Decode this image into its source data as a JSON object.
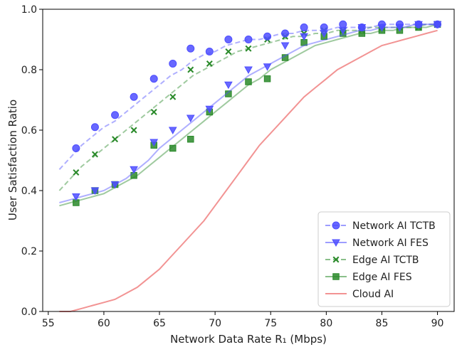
{
  "chart_data": {
    "type": "line",
    "xlabel": "Network Data Rate R₁ (Mbps)",
    "ylabel": "User Satisfaction Ratio",
    "xlim": [
      54.5,
      91.5
    ],
    "ylim": [
      0.0,
      1.0
    ],
    "xticks": [
      55,
      60,
      65,
      70,
      75,
      80,
      85,
      90
    ],
    "yticks": [
      0.0,
      0.2,
      0.4,
      0.6,
      0.8,
      1.0
    ],
    "xtick_labels": [
      "55",
      "60",
      "65",
      "70",
      "75",
      "80",
      "85",
      "90"
    ],
    "ytick_labels": [
      "0.0",
      "0.2",
      "0.4",
      "0.6",
      "0.8",
      "1.0"
    ],
    "grid": false,
    "legend_position": "bottom-right",
    "series": [
      {
        "name": "Network AI TCTB",
        "color": "#4d4dff",
        "line_style": "dashed",
        "marker": "circle",
        "x": [
          56,
          57,
          58,
          59,
          60,
          61,
          62,
          63,
          64,
          65,
          66,
          67,
          68,
          69,
          70,
          71,
          72,
          73,
          74,
          75,
          76,
          77,
          78,
          79,
          80,
          81,
          82,
          83,
          84,
          85,
          86,
          87,
          88,
          89,
          90
        ],
        "values": [
          0.47,
          0.51,
          0.55,
          0.58,
          0.61,
          0.63,
          0.66,
          0.69,
          0.72,
          0.75,
          0.78,
          0.8,
          0.83,
          0.85,
          0.86,
          0.88,
          0.89,
          0.9,
          0.9,
          0.91,
          0.92,
          0.92,
          0.93,
          0.93,
          0.93,
          0.94,
          0.94,
          0.94,
          0.94,
          0.95,
          0.95,
          0.95,
          0.95,
          0.95,
          0.95
        ],
        "markers_x": [
          57.5,
          59.2,
          61.0,
          62.7,
          64.5,
          66.2,
          67.8,
          69.5,
          71.2,
          73.0,
          74.7,
          76.3,
          78.0,
          79.8,
          81.5,
          83.2,
          85.0,
          86.6,
          88.3,
          90.0
        ],
        "markers_y": [
          0.54,
          0.61,
          0.65,
          0.71,
          0.77,
          0.82,
          0.87,
          0.86,
          0.9,
          0.9,
          0.91,
          0.92,
          0.94,
          0.94,
          0.95,
          0.94,
          0.95,
          0.95,
          0.95,
          0.95
        ]
      },
      {
        "name": "Network AI FES",
        "color": "#4d4dff",
        "line_style": "solid",
        "marker": "triangle-down",
        "x": [
          56,
          57,
          58,
          59,
          60,
          61,
          62,
          63,
          64,
          65,
          66,
          67,
          68,
          69,
          70,
          71,
          72,
          73,
          74,
          75,
          76,
          77,
          78,
          79,
          80,
          81,
          82,
          83,
          84,
          85,
          86,
          87,
          88,
          89,
          90
        ],
        "values": [
          0.36,
          0.37,
          0.38,
          0.39,
          0.4,
          0.42,
          0.44,
          0.47,
          0.5,
          0.54,
          0.57,
          0.6,
          0.63,
          0.66,
          0.69,
          0.72,
          0.75,
          0.78,
          0.8,
          0.82,
          0.84,
          0.86,
          0.88,
          0.89,
          0.9,
          0.91,
          0.92,
          0.93,
          0.93,
          0.94,
          0.94,
          0.94,
          0.95,
          0.95,
          0.95
        ],
        "markers_x": [
          57.5,
          59.2,
          61.0,
          62.7,
          64.5,
          66.2,
          67.8,
          69.5,
          71.2,
          73.0,
          74.7,
          76.3,
          78.0,
          79.8,
          81.5,
          83.2,
          85.0,
          86.6,
          88.3,
          90.0
        ],
        "markers_y": [
          0.38,
          0.4,
          0.42,
          0.47,
          0.56,
          0.6,
          0.64,
          0.67,
          0.75,
          0.8,
          0.81,
          0.88,
          0.91,
          0.92,
          0.93,
          0.94,
          0.94,
          0.94,
          0.95,
          0.95
        ]
      },
      {
        "name": "Edge AI TCTB",
        "color": "#2a8a2a",
        "line_style": "dashed",
        "marker": "x",
        "x": [
          56,
          57,
          58,
          59,
          60,
          61,
          62,
          63,
          64,
          65,
          66,
          67,
          68,
          69,
          70,
          71,
          72,
          73,
          74,
          75,
          76,
          77,
          78,
          79,
          80,
          81,
          82,
          83,
          84,
          85,
          86,
          87,
          88,
          89,
          90
        ],
        "values": [
          0.4,
          0.44,
          0.48,
          0.51,
          0.54,
          0.57,
          0.6,
          0.63,
          0.66,
          0.69,
          0.72,
          0.75,
          0.78,
          0.8,
          0.82,
          0.84,
          0.86,
          0.87,
          0.88,
          0.89,
          0.9,
          0.91,
          0.91,
          0.92,
          0.92,
          0.93,
          0.93,
          0.93,
          0.94,
          0.94,
          0.94,
          0.94,
          0.94,
          0.95,
          0.95
        ],
        "markers_x": [
          57.5,
          59.2,
          61.0,
          62.7,
          64.5,
          66.2,
          67.8,
          69.5,
          71.2,
          73.0,
          74.7,
          76.3,
          78.0,
          79.8,
          81.5,
          83.2,
          85.0,
          86.6,
          88.3,
          90.0
        ],
        "markers_y": [
          0.46,
          0.52,
          0.57,
          0.6,
          0.66,
          0.71,
          0.8,
          0.82,
          0.86,
          0.87,
          0.9,
          0.91,
          0.92,
          0.93,
          0.93,
          0.93,
          0.94,
          0.94,
          0.94,
          0.95
        ]
      },
      {
        "name": "Edge AI FES",
        "color": "#2a8a2a",
        "line_style": "solid",
        "marker": "square",
        "x": [
          56,
          57,
          58,
          59,
          60,
          61,
          62,
          63,
          64,
          65,
          66,
          67,
          68,
          69,
          70,
          71,
          72,
          73,
          74,
          75,
          76,
          77,
          78,
          79,
          80,
          81,
          82,
          83,
          84,
          85,
          86,
          87,
          88,
          89,
          90
        ],
        "values": [
          0.35,
          0.36,
          0.37,
          0.38,
          0.39,
          0.41,
          0.43,
          0.45,
          0.48,
          0.51,
          0.54,
          0.57,
          0.6,
          0.63,
          0.66,
          0.69,
          0.72,
          0.75,
          0.77,
          0.8,
          0.82,
          0.84,
          0.86,
          0.88,
          0.89,
          0.9,
          0.91,
          0.92,
          0.92,
          0.93,
          0.93,
          0.94,
          0.94,
          0.94,
          0.95
        ],
        "markers_x": [
          57.5,
          59.2,
          61.0,
          62.7,
          64.5,
          66.2,
          67.8,
          69.5,
          71.2,
          73.0,
          74.7,
          76.3,
          78.0,
          79.8,
          81.5,
          83.2,
          85.0,
          86.6,
          88.3,
          90.0
        ],
        "markers_y": [
          0.36,
          0.4,
          0.42,
          0.45,
          0.55,
          0.54,
          0.57,
          0.66,
          0.72,
          0.76,
          0.77,
          0.84,
          0.89,
          0.91,
          0.92,
          0.92,
          0.93,
          0.93,
          0.94,
          0.95
        ]
      },
      {
        "name": "Cloud AI",
        "color": "#f08080",
        "line_style": "solid",
        "marker": "none",
        "x": [
          56,
          57,
          58,
          59,
          60,
          61,
          62,
          63,
          64,
          65,
          66,
          67,
          68,
          69,
          70,
          71,
          72,
          73,
          74,
          75,
          76,
          77,
          78,
          79,
          80,
          81,
          82,
          83,
          84,
          85,
          86,
          87,
          88,
          89,
          90
        ],
        "values": [
          0.0,
          0.0,
          0.01,
          0.02,
          0.03,
          0.04,
          0.06,
          0.08,
          0.11,
          0.14,
          0.18,
          0.22,
          0.26,
          0.3,
          0.35,
          0.4,
          0.45,
          0.5,
          0.55,
          0.59,
          0.63,
          0.67,
          0.71,
          0.74,
          0.77,
          0.8,
          0.82,
          0.84,
          0.86,
          0.88,
          0.89,
          0.9,
          0.91,
          0.92,
          0.93
        ]
      }
    ]
  }
}
